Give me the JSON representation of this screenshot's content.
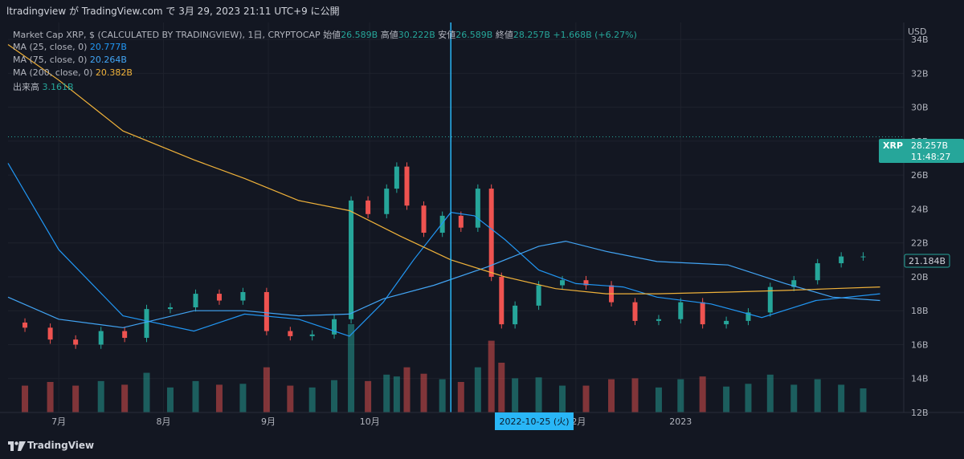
{
  "header": {
    "text": "ltradingview が TradingView.com で 3月 29, 2023 21:11 UTC+9 に公開"
  },
  "legend": {
    "main": {
      "title": "Market Cap XRP, $ (CALCULATED BY TRADINGVIEW), 1日, CRYPTOCAP",
      "open_label": "始値",
      "open": "26.589B",
      "high_label": "高値",
      "high": "30.222B",
      "low_label": "安値",
      "low": "26.589B",
      "close_label": "終値",
      "close": "28.257B",
      "change": "+1.668B (+6.27%)"
    },
    "ma25": {
      "label": "MA (25, close, 0)",
      "value": "20.777B"
    },
    "ma75": {
      "label": "MA (75, close, 0)",
      "value": "20.264B"
    },
    "ma200": {
      "label": "MA (200, close, 0)",
      "value": "20.382B"
    },
    "volume": {
      "label": "出来高",
      "value": "3.161B"
    }
  },
  "price_axis": {
    "currency": "USD"
  },
  "badges": {
    "last_price": {
      "symbol": "XRP",
      "value": "28.257B",
      "countdown": "11:48:27"
    },
    "crosshair_price": "21.184B",
    "crosshair_date": "2022-10-25 (火)"
  },
  "footer": {
    "brand": "TradingView"
  },
  "colors": {
    "up": "#26a69a",
    "down": "#ef5350",
    "ma25": "#2196f3",
    "ma75": "#42a5f5",
    "ma200": "#f0b23a",
    "crosshair": "#29b6f6",
    "background": "#131722"
  },
  "chart_data": {
    "type": "candlestick",
    "currency": "USD",
    "unit": "B",
    "yticks": [
      12,
      14,
      16,
      18,
      20,
      22,
      24,
      26,
      28,
      30,
      32,
      34
    ],
    "ytick_labels": [
      "12B",
      "14B",
      "16B",
      "18B",
      "20B",
      "22B",
      "24B",
      "26B",
      "28B",
      "30B",
      "32B",
      "34B"
    ],
    "ylim": [
      12,
      35
    ],
    "x_ticks": [
      {
        "date": "2022-07-01",
        "label": "7月"
      },
      {
        "date": "2022-08-01",
        "label": "8月"
      },
      {
        "date": "2022-09-01",
        "label": "9月"
      },
      {
        "date": "2022-10-01",
        "label": "10月"
      },
      {
        "date": "2022-12-01",
        "label": "12月"
      },
      {
        "date": "2023-01-01",
        "label": "2023"
      }
    ],
    "xlim": [
      "2022-06-16",
      "2023-03-08"
    ],
    "close_series": [
      {
        "date": "2022-06-17",
        "close": 17.3
      },
      {
        "date": "2022-06-25",
        "close": 17.0
      },
      {
        "date": "2022-07-02",
        "close": 16.3
      },
      {
        "date": "2022-07-10",
        "close": 16.0
      },
      {
        "date": "2022-07-17",
        "close": 16.8
      },
      {
        "date": "2022-07-24",
        "close": 16.4
      },
      {
        "date": "2022-07-30",
        "close": 18.1
      },
      {
        "date": "2022-08-07",
        "close": 18.2
      },
      {
        "date": "2022-08-14",
        "close": 19.0
      },
      {
        "date": "2022-08-21",
        "close": 18.6
      },
      {
        "date": "2022-08-28",
        "close": 19.1
      },
      {
        "date": "2022-09-04",
        "close": 16.8
      },
      {
        "date": "2022-09-11",
        "close": 16.5
      },
      {
        "date": "2022-09-17",
        "close": 16.6
      },
      {
        "date": "2022-09-24",
        "close": 17.5
      },
      {
        "date": "2022-09-27",
        "close": 24.5
      },
      {
        "date": "2022-10-04",
        "close": 23.7
      },
      {
        "date": "2022-10-08",
        "close": 25.2
      },
      {
        "date": "2022-10-10",
        "close": 26.5
      },
      {
        "date": "2022-10-14",
        "close": 24.2
      },
      {
        "date": "2022-10-20",
        "close": 22.6
      },
      {
        "date": "2022-10-25",
        "close": 23.6
      },
      {
        "date": "2022-10-31",
        "close": 22.9
      },
      {
        "date": "2022-11-04",
        "close": 25.2
      },
      {
        "date": "2022-11-08",
        "close": 20.0
      },
      {
        "date": "2022-11-10",
        "close": 17.2
      },
      {
        "date": "2022-11-16",
        "close": 18.3
      },
      {
        "date": "2022-11-24",
        "close": 19.5
      },
      {
        "date": "2022-11-30",
        "close": 19.8
      },
      {
        "date": "2022-12-08",
        "close": 19.5
      },
      {
        "date": "2022-12-15",
        "close": 18.5
      },
      {
        "date": "2022-12-22",
        "close": 17.4
      },
      {
        "date": "2022-12-29",
        "close": 17.5
      },
      {
        "date": "2023-01-04",
        "close": 18.5
      },
      {
        "date": "2023-01-11",
        "close": 17.2
      },
      {
        "date": "2023-01-18",
        "close": 17.4
      },
      {
        "date": "2023-01-24",
        "close": 17.9
      },
      {
        "date": "2023-01-31",
        "close": 19.4
      },
      {
        "date": "2023-02-07",
        "close": 19.8
      },
      {
        "date": "2023-02-14",
        "close": 20.8
      },
      {
        "date": "2023-02-21",
        "close": 21.2
      },
      {
        "date": "2023-02-27",
        "close": 21.2
      }
    ],
    "series": [
      {
        "name": "MA (25, close, 0)",
        "value": "20.777B",
        "points": [
          [
            "2022-06-16",
            26.7
          ],
          [
            "2022-07-01",
            21.6
          ],
          [
            "2022-07-20",
            17.7
          ],
          [
            "2022-08-10",
            16.8
          ],
          [
            "2022-08-25",
            17.8
          ],
          [
            "2022-09-10",
            17.5
          ],
          [
            "2022-09-25",
            16.5
          ],
          [
            "2022-10-05",
            18.5
          ],
          [
            "2022-10-14",
            21.0
          ],
          [
            "2022-10-25",
            23.8
          ],
          [
            "2022-11-01",
            23.6
          ],
          [
            "2022-11-10",
            22.2
          ],
          [
            "2022-11-20",
            20.4
          ],
          [
            "2022-12-01",
            19.6
          ],
          [
            "2022-12-15",
            19.4
          ],
          [
            "2022-12-25",
            18.8
          ],
          [
            "2023-01-10",
            18.4
          ],
          [
            "2023-01-25",
            17.6
          ],
          [
            "2023-02-10",
            18.6
          ],
          [
            "2023-03-01",
            19.0
          ]
        ]
      },
      {
        "name": "MA (75, close, 0)",
        "value": "20.264B",
        "points": [
          [
            "2022-06-16",
            18.8
          ],
          [
            "2022-07-01",
            17.5
          ],
          [
            "2022-07-20",
            17.0
          ],
          [
            "2022-08-10",
            18.0
          ],
          [
            "2022-08-25",
            18.0
          ],
          [
            "2022-09-10",
            17.7
          ],
          [
            "2022-09-25",
            17.8
          ],
          [
            "2022-10-05",
            18.7
          ],
          [
            "2022-10-20",
            19.5
          ],
          [
            "2022-11-05",
            20.6
          ],
          [
            "2022-11-20",
            21.8
          ],
          [
            "2022-11-28",
            22.1
          ],
          [
            "2022-12-10",
            21.5
          ],
          [
            "2022-12-25",
            20.9
          ],
          [
            "2023-01-15",
            20.7
          ],
          [
            "2023-02-01",
            19.6
          ],
          [
            "2023-02-15",
            18.8
          ],
          [
            "2023-03-01",
            18.6
          ]
        ]
      },
      {
        "name": "MA (200, close, 0)",
        "value": "20.382B",
        "points": [
          [
            "2022-06-16",
            33.7
          ],
          [
            "2022-07-01",
            31.6
          ],
          [
            "2022-07-20",
            28.6
          ],
          [
            "2022-08-10",
            26.9
          ],
          [
            "2022-08-25",
            25.8
          ],
          [
            "2022-09-10",
            24.5
          ],
          [
            "2022-09-25",
            23.9
          ],
          [
            "2022-10-10",
            22.4
          ],
          [
            "2022-10-25",
            21.0
          ],
          [
            "2022-11-10",
            20.0
          ],
          [
            "2022-11-25",
            19.3
          ],
          [
            "2022-12-10",
            19.0
          ],
          [
            "2022-12-25",
            19.0
          ],
          [
            "2023-01-15",
            19.1
          ],
          [
            "2023-02-01",
            19.2
          ],
          [
            "2023-02-15",
            19.3
          ],
          [
            "2023-03-01",
            19.4
          ]
        ]
      }
    ],
    "volume": {
      "label": "出来高",
      "last": "3.161B"
    }
  }
}
